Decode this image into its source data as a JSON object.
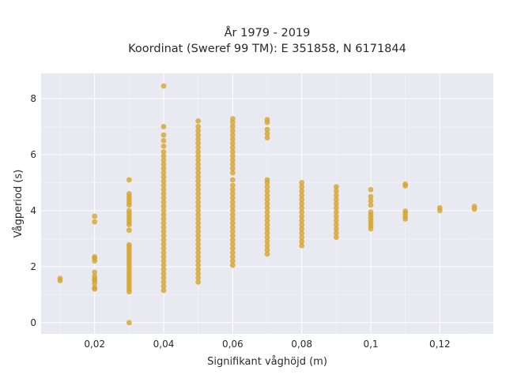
{
  "chart_data": {
    "type": "scatter",
    "title": "År 1979 - 2019",
    "subtitle": "Koordinat (Sweref 99 TM): E 351858, N 6171844",
    "xlabel": "Signifikant våghöjd (m)",
    "ylabel": "Vågperiod (s)",
    "xlim": [
      0.0045,
      0.1355
    ],
    "ylim": [
      -0.4,
      8.9
    ],
    "x_ticks": [
      0.02,
      0.04,
      0.06,
      0.08,
      0.1,
      0.12
    ],
    "x_tick_labels": [
      "0,02",
      "0,04",
      "0,06",
      "0,08",
      "0,1",
      "0,12"
    ],
    "y_ticks": [
      0,
      2,
      4,
      6,
      8
    ],
    "y_tick_labels": [
      "0",
      "2",
      "4",
      "6",
      "8"
    ],
    "grid": true,
    "background": "#e9e9f1",
    "grid_color": "#ffffff",
    "marker_color": "#d4a52c",
    "series": [
      {
        "points": [
          [
            0.01,
            1.5
          ],
          [
            0.01,
            1.58
          ],
          [
            0.02,
            1.2
          ],
          [
            0.02,
            1.25
          ],
          [
            0.02,
            1.4
          ],
          [
            0.02,
            1.5
          ],
          [
            0.02,
            1.55
          ],
          [
            0.02,
            1.65
          ],
          [
            0.02,
            1.8
          ],
          [
            0.02,
            2.2
          ],
          [
            0.02,
            2.3
          ],
          [
            0.02,
            2.35
          ],
          [
            0.02,
            3.6
          ],
          [
            0.02,
            3.8
          ],
          [
            0.03,
            0.0
          ],
          [
            0.03,
            1.1
          ],
          [
            0.03,
            1.2
          ],
          [
            0.03,
            1.3
          ],
          [
            0.03,
            1.4
          ],
          [
            0.03,
            1.5
          ],
          [
            0.03,
            1.6
          ],
          [
            0.03,
            1.7
          ],
          [
            0.03,
            1.8
          ],
          [
            0.03,
            1.9
          ],
          [
            0.03,
            2.0
          ],
          [
            0.03,
            2.1
          ],
          [
            0.03,
            2.2
          ],
          [
            0.03,
            2.3
          ],
          [
            0.03,
            2.4
          ],
          [
            0.03,
            2.5
          ],
          [
            0.03,
            2.6
          ],
          [
            0.03,
            2.7
          ],
          [
            0.03,
            2.78
          ],
          [
            0.03,
            3.3
          ],
          [
            0.03,
            3.5
          ],
          [
            0.03,
            3.6
          ],
          [
            0.03,
            3.7
          ],
          [
            0.03,
            3.8
          ],
          [
            0.03,
            3.9
          ],
          [
            0.03,
            4.0
          ],
          [
            0.03,
            4.2
          ],
          [
            0.03,
            4.3
          ],
          [
            0.03,
            4.4
          ],
          [
            0.03,
            4.5
          ],
          [
            0.03,
            4.6
          ],
          [
            0.03,
            5.1
          ],
          [
            0.04,
            1.15
          ],
          [
            0.04,
            1.3
          ],
          [
            0.04,
            1.45
          ],
          [
            0.04,
            1.6
          ],
          [
            0.04,
            1.75
          ],
          [
            0.04,
            1.9
          ],
          [
            0.04,
            2.05
          ],
          [
            0.04,
            2.2
          ],
          [
            0.04,
            2.35
          ],
          [
            0.04,
            2.5
          ],
          [
            0.04,
            2.65
          ],
          [
            0.04,
            2.8
          ],
          [
            0.04,
            2.95
          ],
          [
            0.04,
            3.1
          ],
          [
            0.04,
            3.25
          ],
          [
            0.04,
            3.4
          ],
          [
            0.04,
            3.55
          ],
          [
            0.04,
            3.7
          ],
          [
            0.04,
            3.85
          ],
          [
            0.04,
            4.0
          ],
          [
            0.04,
            4.15
          ],
          [
            0.04,
            4.3
          ],
          [
            0.04,
            4.45
          ],
          [
            0.04,
            4.6
          ],
          [
            0.04,
            4.75
          ],
          [
            0.04,
            4.9
          ],
          [
            0.04,
            5.05
          ],
          [
            0.04,
            5.2
          ],
          [
            0.04,
            5.35
          ],
          [
            0.04,
            5.5
          ],
          [
            0.04,
            5.65
          ],
          [
            0.04,
            5.8
          ],
          [
            0.04,
            5.95
          ],
          [
            0.04,
            6.1
          ],
          [
            0.04,
            6.3
          ],
          [
            0.04,
            6.5
          ],
          [
            0.04,
            6.7
          ],
          [
            0.04,
            7.0
          ],
          [
            0.04,
            8.45
          ],
          [
            0.05,
            1.45
          ],
          [
            0.05,
            1.6
          ],
          [
            0.05,
            1.75
          ],
          [
            0.05,
            1.9
          ],
          [
            0.05,
            2.05
          ],
          [
            0.05,
            2.2
          ],
          [
            0.05,
            2.35
          ],
          [
            0.05,
            2.5
          ],
          [
            0.05,
            2.65
          ],
          [
            0.05,
            2.8
          ],
          [
            0.05,
            2.95
          ],
          [
            0.05,
            3.1
          ],
          [
            0.05,
            3.25
          ],
          [
            0.05,
            3.4
          ],
          [
            0.05,
            3.55
          ],
          [
            0.05,
            3.7
          ],
          [
            0.05,
            3.85
          ],
          [
            0.05,
            4.0
          ],
          [
            0.05,
            4.15
          ],
          [
            0.05,
            4.3
          ],
          [
            0.05,
            4.45
          ],
          [
            0.05,
            4.6
          ],
          [
            0.05,
            4.75
          ],
          [
            0.05,
            4.9
          ],
          [
            0.05,
            5.05
          ],
          [
            0.05,
            5.2
          ],
          [
            0.05,
            5.35
          ],
          [
            0.05,
            5.5
          ],
          [
            0.05,
            5.65
          ],
          [
            0.05,
            5.8
          ],
          [
            0.05,
            5.95
          ],
          [
            0.05,
            6.1
          ],
          [
            0.05,
            6.25
          ],
          [
            0.05,
            6.4
          ],
          [
            0.05,
            6.55
          ],
          [
            0.05,
            6.7
          ],
          [
            0.05,
            6.85
          ],
          [
            0.05,
            7.0
          ],
          [
            0.05,
            7.2
          ],
          [
            0.06,
            2.05
          ],
          [
            0.06,
            2.2
          ],
          [
            0.06,
            2.35
          ],
          [
            0.06,
            2.5
          ],
          [
            0.06,
            2.65
          ],
          [
            0.06,
            2.8
          ],
          [
            0.06,
            2.95
          ],
          [
            0.06,
            3.1
          ],
          [
            0.06,
            3.25
          ],
          [
            0.06,
            3.4
          ],
          [
            0.06,
            3.55
          ],
          [
            0.06,
            3.7
          ],
          [
            0.06,
            3.85
          ],
          [
            0.06,
            4.0
          ],
          [
            0.06,
            4.15
          ],
          [
            0.06,
            4.3
          ],
          [
            0.06,
            4.45
          ],
          [
            0.06,
            4.6
          ],
          [
            0.06,
            4.75
          ],
          [
            0.06,
            4.9
          ],
          [
            0.06,
            5.1
          ],
          [
            0.06,
            5.35
          ],
          [
            0.06,
            5.5
          ],
          [
            0.06,
            5.65
          ],
          [
            0.06,
            5.8
          ],
          [
            0.06,
            5.95
          ],
          [
            0.06,
            6.1
          ],
          [
            0.06,
            6.25
          ],
          [
            0.06,
            6.4
          ],
          [
            0.06,
            6.55
          ],
          [
            0.06,
            6.7
          ],
          [
            0.06,
            6.85
          ],
          [
            0.06,
            7.0
          ],
          [
            0.06,
            7.15
          ],
          [
            0.06,
            7.28
          ],
          [
            0.07,
            2.45
          ],
          [
            0.07,
            2.6
          ],
          [
            0.07,
            2.75
          ],
          [
            0.07,
            2.9
          ],
          [
            0.07,
            3.05
          ],
          [
            0.07,
            3.2
          ],
          [
            0.07,
            3.35
          ],
          [
            0.07,
            3.5
          ],
          [
            0.07,
            3.65
          ],
          [
            0.07,
            3.8
          ],
          [
            0.07,
            3.95
          ],
          [
            0.07,
            4.1
          ],
          [
            0.07,
            4.25
          ],
          [
            0.07,
            4.4
          ],
          [
            0.07,
            4.55
          ],
          [
            0.07,
            4.7
          ],
          [
            0.07,
            4.85
          ],
          [
            0.07,
            5.0
          ],
          [
            0.07,
            5.1
          ],
          [
            0.07,
            6.6
          ],
          [
            0.07,
            6.75
          ],
          [
            0.07,
            6.9
          ],
          [
            0.07,
            7.15
          ],
          [
            0.07,
            7.25
          ],
          [
            0.08,
            2.75
          ],
          [
            0.08,
            2.9
          ],
          [
            0.08,
            3.05
          ],
          [
            0.08,
            3.2
          ],
          [
            0.08,
            3.35
          ],
          [
            0.08,
            3.5
          ],
          [
            0.08,
            3.65
          ],
          [
            0.08,
            3.8
          ],
          [
            0.08,
            3.95
          ],
          [
            0.08,
            4.1
          ],
          [
            0.08,
            4.25
          ],
          [
            0.08,
            4.4
          ],
          [
            0.08,
            4.55
          ],
          [
            0.08,
            4.7
          ],
          [
            0.08,
            4.85
          ],
          [
            0.08,
            5.0
          ],
          [
            0.09,
            3.05
          ],
          [
            0.09,
            3.2
          ],
          [
            0.09,
            3.35
          ],
          [
            0.09,
            3.5
          ],
          [
            0.09,
            3.65
          ],
          [
            0.09,
            3.8
          ],
          [
            0.09,
            3.95
          ],
          [
            0.09,
            4.1
          ],
          [
            0.09,
            4.25
          ],
          [
            0.09,
            4.4
          ],
          [
            0.09,
            4.55
          ],
          [
            0.09,
            4.7
          ],
          [
            0.09,
            4.85
          ],
          [
            0.1,
            3.35
          ],
          [
            0.1,
            3.45
          ],
          [
            0.1,
            3.55
          ],
          [
            0.1,
            3.65
          ],
          [
            0.1,
            3.75
          ],
          [
            0.1,
            3.85
          ],
          [
            0.1,
            3.95
          ],
          [
            0.1,
            4.2
          ],
          [
            0.1,
            4.35
          ],
          [
            0.1,
            4.5
          ],
          [
            0.1,
            4.75
          ],
          [
            0.11,
            3.7
          ],
          [
            0.11,
            3.8
          ],
          [
            0.11,
            3.9
          ],
          [
            0.11,
            3.98
          ],
          [
            0.11,
            4.88
          ],
          [
            0.11,
            4.95
          ],
          [
            0.12,
            4.0
          ],
          [
            0.12,
            4.1
          ],
          [
            0.13,
            4.05
          ],
          [
            0.13,
            4.15
          ]
        ]
      }
    ]
  }
}
